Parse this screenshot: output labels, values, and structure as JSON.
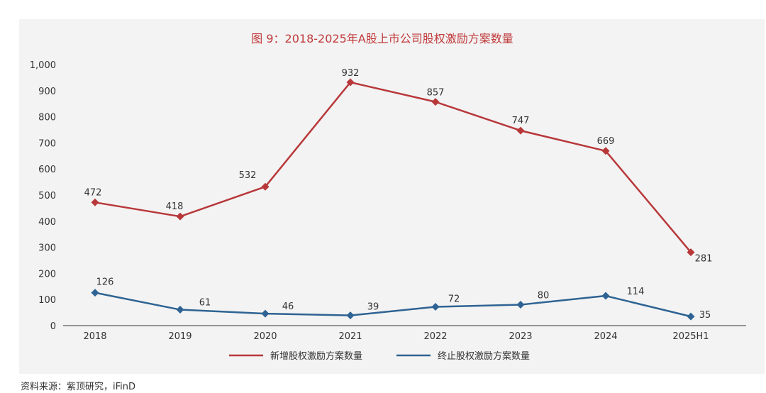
{
  "chart_data": {
    "type": "line",
    "title": "图 9：2018-2025年A股上市公司股权激励方案数量",
    "categories": [
      "2018",
      "2019",
      "2020",
      "2021",
      "2022",
      "2023",
      "2024",
      "2025H1"
    ],
    "series": [
      {
        "name": "新增股权激励方案数量",
        "values": [
          472,
          418,
          532,
          932,
          857,
          747,
          669,
          281
        ],
        "color": "#b8383a",
        "marker": "diamond"
      },
      {
        "name": "终止股权激励方案数量",
        "values": [
          126,
          61,
          46,
          39,
          72,
          80,
          114,
          35
        ],
        "color": "#2e6393",
        "marker": "diamond"
      }
    ],
    "ylim": [
      0,
      1000
    ],
    "yticks": [
      "0",
      "100",
      "200",
      "300",
      "400",
      "500",
      "600",
      "700",
      "800",
      "900",
      "1,000"
    ],
    "xlabel": "",
    "ylabel": "",
    "legend_position": "bottom-center",
    "grid": false
  },
  "source": "资料来源：紫顶研究，iFinD"
}
